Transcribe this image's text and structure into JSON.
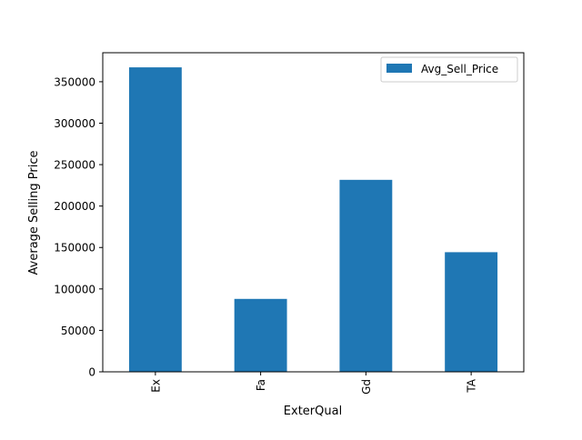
{
  "chart_data": {
    "type": "bar",
    "title": "",
    "xlabel": "ExterQual",
    "ylabel": "Average Selling Price",
    "categories": [
      "Ex",
      "Fa",
      "Gd",
      "TA"
    ],
    "series": [
      {
        "name": "Avg_Sell_Price",
        "values": [
          367361,
          87985,
          231634,
          144341
        ],
        "color": "#1f77b4"
      }
    ],
    "ylim": [
      0,
      385000
    ],
    "yticks": [
      0,
      50000,
      100000,
      150000,
      200000,
      250000,
      300000,
      350000
    ],
    "ytick_labels": [
      "0",
      "50000",
      "100000",
      "150000",
      "200000",
      "250000",
      "300000",
      "350000"
    ],
    "grid": false,
    "legend_position": "top-right",
    "x_tick_rotation": 90
  }
}
